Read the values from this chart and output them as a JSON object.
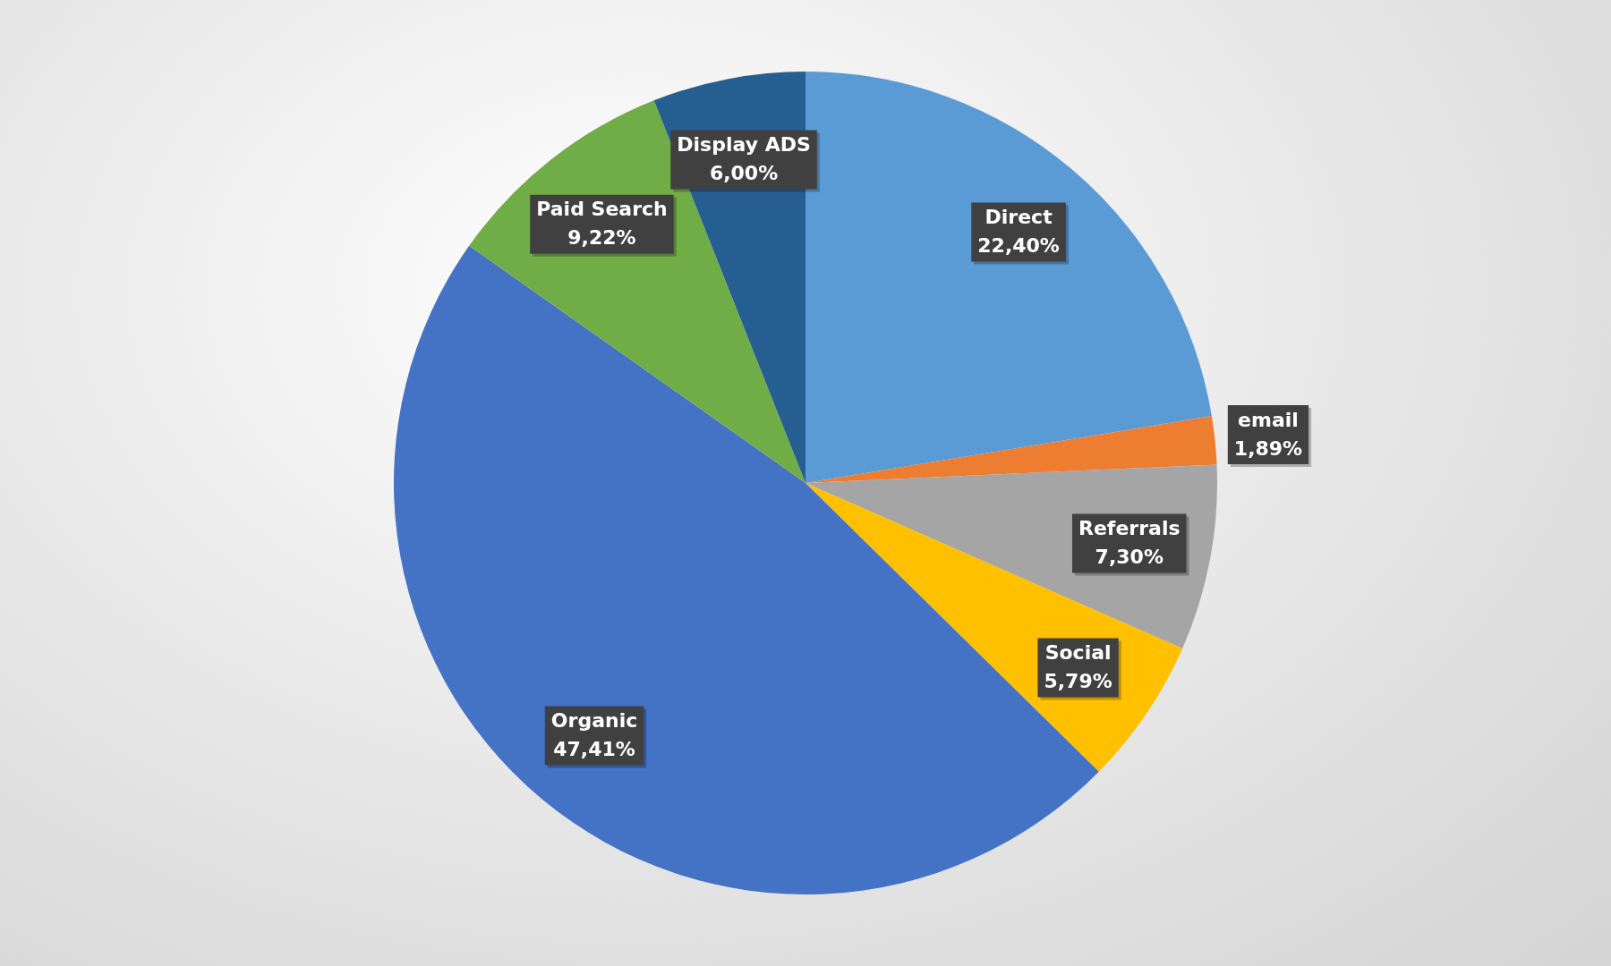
{
  "chart_data": {
    "type": "pie",
    "categories": [
      "Direct",
      "email",
      "Referrals",
      "Social",
      "Organic",
      "Paid Search",
      "Display ADS"
    ],
    "values": [
      22.4,
      1.89,
      7.3,
      5.79,
      47.41,
      9.22,
      6.0
    ],
    "colors": [
      "#5b9bd5",
      "#ed7d31",
      "#a5a5a5",
      "#ffc000",
      "#4472c4",
      "#70ad47",
      "#255e91"
    ],
    "value_labels": [
      "22,40%",
      "1,89%",
      "7,30%",
      "5,79%",
      "47,41%",
      "9,22%",
      "6,00%"
    ]
  }
}
